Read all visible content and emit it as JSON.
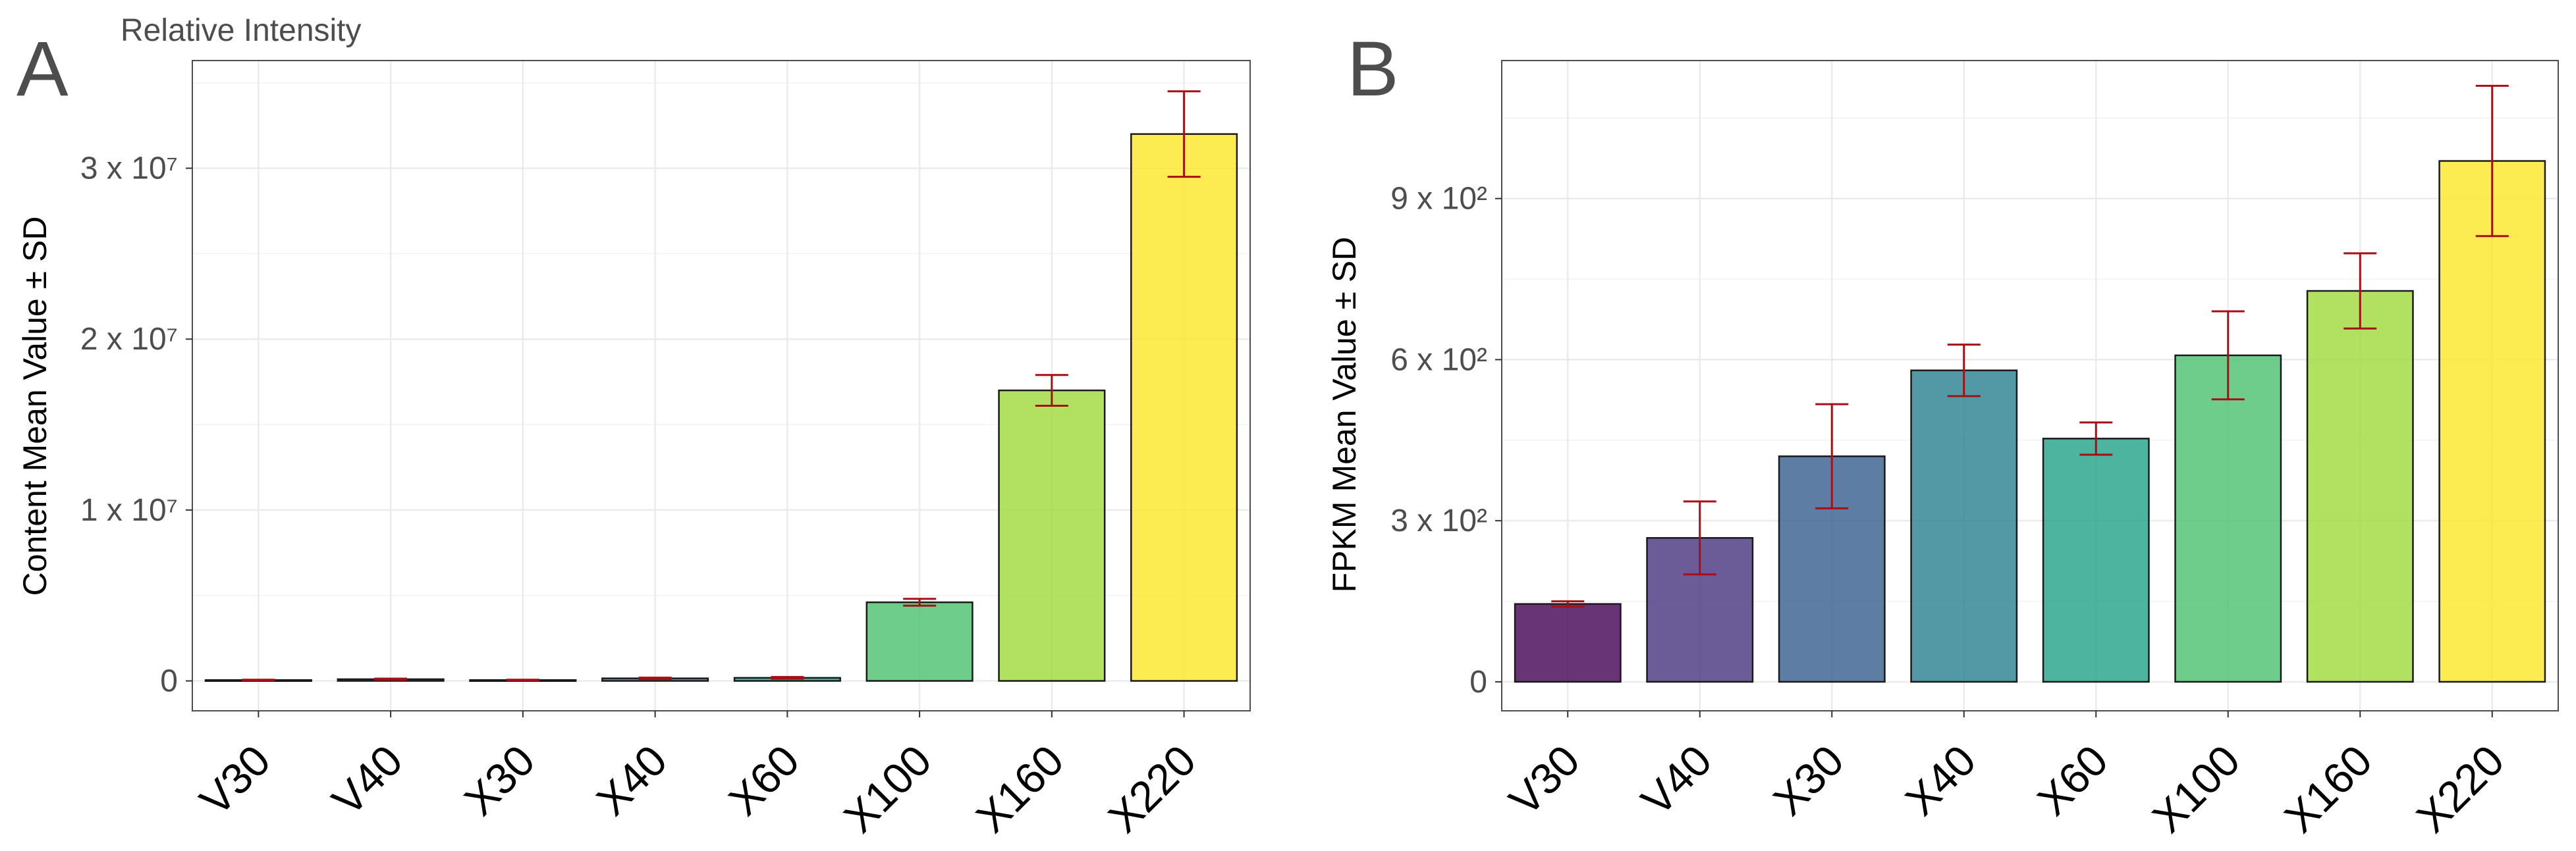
{
  "figure": {
    "panel_a_letter": "A",
    "panel_b_letter": "B"
  },
  "chart_data": [
    {
      "type": "bar",
      "panel": "A",
      "title": "Relative Intensity",
      "xlabel": "",
      "ylabel": "Content Mean Value ± SD",
      "categories": [
        "V30",
        "V40",
        "X30",
        "X40",
        "X60",
        "X100",
        "X160",
        "X220"
      ],
      "values": [
        50000,
        100000,
        50000,
        150000,
        180000,
        4600000,
        17000000,
        32000000
      ],
      "errors": [
        20000,
        30000,
        20000,
        40000,
        50000,
        200000,
        900000,
        2500000
      ],
      "colors": [
        "#440154",
        "#46337E",
        "#365C8D",
        "#277F8E",
        "#1FA187",
        "#4AC16D",
        "#9FDA3A",
        "#FDE725"
      ],
      "error_color": "#a50f15",
      "ylim": [
        -1750000,
        36300000
      ],
      "yticks": [
        0,
        10000000,
        20000000,
        30000000
      ],
      "ytick_labels": [
        "0",
        "1 x 10⁷",
        "2 x 10⁷",
        "3 x 10⁷"
      ],
      "grid": true
    },
    {
      "type": "bar",
      "panel": "B",
      "title": "",
      "xlabel": "",
      "ylabel": "FPKM Mean Value ± SD",
      "categories": [
        "V30",
        "V40",
        "X30",
        "X40",
        "X60",
        "X100",
        "X160",
        "X220"
      ],
      "values": [
        145,
        268,
        420,
        580,
        453,
        608,
        728,
        970
      ],
      "errors": [
        5,
        68,
        97,
        48,
        30,
        82,
        70,
        140
      ],
      "colors": [
        "#440154",
        "#46337E",
        "#365C8D",
        "#277F8E",
        "#1FA187",
        "#4AC16D",
        "#9FDA3A",
        "#FDE725"
      ],
      "error_color": "#a50f15",
      "ylim": [
        -54,
        1157
      ],
      "yticks": [
        0,
        300,
        600,
        900
      ],
      "ytick_labels": [
        "0",
        "3 x 10²",
        "6 x 10²",
        "9 x 10²"
      ],
      "grid": true
    }
  ]
}
